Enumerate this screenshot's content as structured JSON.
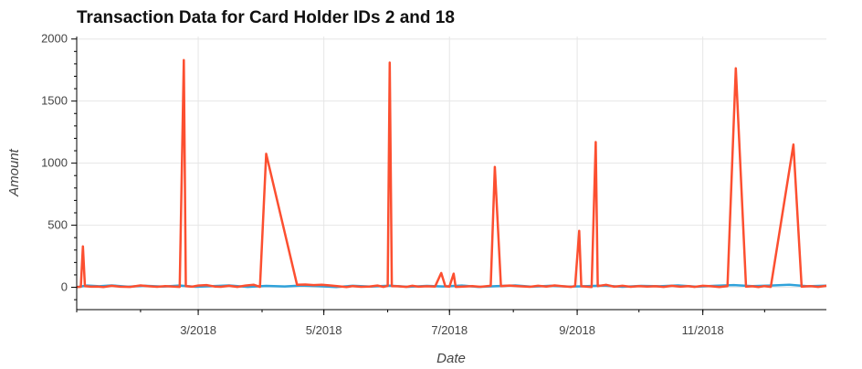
{
  "chart_data": {
    "type": "line",
    "title": "Transaction Data for Card Holder IDs 2 and 18",
    "xlabel": "Date",
    "ylabel": "Amount",
    "xlim": [
      "2018-01-01",
      "2018-12-31"
    ],
    "ylim": [
      -180,
      2020
    ],
    "x_ticks": [
      "3/2018",
      "5/2018",
      "7/2018",
      "9/2018",
      "11/2018"
    ],
    "x_tick_dates": [
      "2018-03-01",
      "2018-05-01",
      "2018-07-01",
      "2018-09-01",
      "2018-11-01"
    ],
    "y_ticks": [
      0,
      500,
      1000,
      1500,
      2000
    ],
    "grid": true,
    "legend": "none",
    "colors": {
      "card_holder_2": "#30a2da",
      "card_holder_18": "#fc4f30",
      "grid": "#e6e6e6"
    },
    "series": [
      {
        "values": [
          {
            "x": "2018-01-01",
            "y": 2
          },
          {
            "x": "2018-01-06",
            "y": 14
          },
          {
            "x": "2018-01-12",
            "y": 8
          },
          {
            "x": "2018-01-18",
            "y": 15
          },
          {
            "x": "2018-01-26",
            "y": 5
          },
          {
            "x": "2018-02-03",
            "y": 12
          },
          {
            "x": "2018-02-12",
            "y": 6
          },
          {
            "x": "2018-02-20",
            "y": 14
          },
          {
            "x": "2018-02-28",
            "y": 4
          },
          {
            "x": "2018-03-08",
            "y": 10
          },
          {
            "x": "2018-03-16",
            "y": 15
          },
          {
            "x": "2018-03-25",
            "y": 3
          },
          {
            "x": "2018-04-03",
            "y": 11
          },
          {
            "x": "2018-04-12",
            "y": 7
          },
          {
            "x": "2018-04-20",
            "y": 14
          },
          {
            "x": "2018-04-28",
            "y": 9
          },
          {
            "x": "2018-05-07",
            "y": 2
          },
          {
            "x": "2018-05-15",
            "y": 12
          },
          {
            "x": "2018-05-24",
            "y": 6
          },
          {
            "x": "2018-06-02",
            "y": 13
          },
          {
            "x": "2018-06-11",
            "y": 4
          },
          {
            "x": "2018-06-20",
            "y": 11
          },
          {
            "x": "2018-06-28",
            "y": 7
          },
          {
            "x": "2018-07-07",
            "y": 14
          },
          {
            "x": "2018-07-15",
            "y": 3
          },
          {
            "x": "2018-07-24",
            "y": 10
          },
          {
            "x": "2018-08-02",
            "y": 15
          },
          {
            "x": "2018-08-10",
            "y": 5
          },
          {
            "x": "2018-08-19",
            "y": 12
          },
          {
            "x": "2018-08-28",
            "y": 6
          },
          {
            "x": "2018-09-06",
            "y": 9
          },
          {
            "x": "2018-09-14",
            "y": 14
          },
          {
            "x": "2018-09-23",
            "y": 4
          },
          {
            "x": "2018-10-02",
            "y": 11
          },
          {
            "x": "2018-10-11",
            "y": 8
          },
          {
            "x": "2018-10-20",
            "y": 15
          },
          {
            "x": "2018-10-29",
            "y": 5
          },
          {
            "x": "2018-11-07",
            "y": 12
          },
          {
            "x": "2018-11-16",
            "y": 18
          },
          {
            "x": "2018-11-25",
            "y": 10
          },
          {
            "x": "2018-12-04",
            "y": 14
          },
          {
            "x": "2018-12-13",
            "y": 20
          },
          {
            "x": "2018-12-22",
            "y": 8
          },
          {
            "x": "2018-12-31",
            "y": 13
          }
        ]
      },
      {
        "values": [
          {
            "x": "2018-01-01",
            "y": 2
          },
          {
            "x": "2018-01-03",
            "y": 4
          },
          {
            "x": "2018-01-04",
            "y": 330
          },
          {
            "x": "2018-01-05",
            "y": 10
          },
          {
            "x": "2018-01-08",
            "y": 5
          },
          {
            "x": "2018-01-11",
            "y": 6
          },
          {
            "x": "2018-01-14",
            "y": 2
          },
          {
            "x": "2018-01-18",
            "y": 12
          },
          {
            "x": "2018-01-22",
            "y": 5
          },
          {
            "x": "2018-01-27",
            "y": 3
          },
          {
            "x": "2018-02-01",
            "y": 15
          },
          {
            "x": "2018-02-05",
            "y": 8
          },
          {
            "x": "2018-02-09",
            "y": 4
          },
          {
            "x": "2018-02-13",
            "y": 10
          },
          {
            "x": "2018-02-17",
            "y": 6
          },
          {
            "x": "2018-02-20",
            "y": 3
          },
          {
            "x": "2018-02-22",
            "y": 1830
          },
          {
            "x": "2018-02-23",
            "y": 10
          },
          {
            "x": "2018-02-26",
            "y": 5
          },
          {
            "x": "2018-03-01",
            "y": 14
          },
          {
            "x": "2018-03-05",
            "y": 18
          },
          {
            "x": "2018-03-09",
            "y": 6
          },
          {
            "x": "2018-03-12",
            "y": 4
          },
          {
            "x": "2018-03-16",
            "y": 12
          },
          {
            "x": "2018-03-20",
            "y": 3
          },
          {
            "x": "2018-03-24",
            "y": 14
          },
          {
            "x": "2018-03-28",
            "y": 20
          },
          {
            "x": "2018-03-31",
            "y": 3
          },
          {
            "x": "2018-04-03",
            "y": 1075
          },
          {
            "x": "2018-04-18",
            "y": 20
          },
          {
            "x": "2018-04-22",
            "y": 22
          },
          {
            "x": "2018-04-26",
            "y": 18
          },
          {
            "x": "2018-04-30",
            "y": 20
          },
          {
            "x": "2018-05-04",
            "y": 15
          },
          {
            "x": "2018-05-08",
            "y": 8
          },
          {
            "x": "2018-05-12",
            "y": 2
          },
          {
            "x": "2018-05-15",
            "y": 10
          },
          {
            "x": "2018-05-19",
            "y": 4
          },
          {
            "x": "2018-05-23",
            "y": 6
          },
          {
            "x": "2018-05-27",
            "y": 14
          },
          {
            "x": "2018-05-30",
            "y": 3
          },
          {
            "x": "2018-06-01",
            "y": 12
          },
          {
            "x": "2018-06-02",
            "y": 1810
          },
          {
            "x": "2018-06-03",
            "y": 10
          },
          {
            "x": "2018-06-06",
            "y": 8
          },
          {
            "x": "2018-06-10",
            "y": 3
          },
          {
            "x": "2018-06-13",
            "y": 12
          },
          {
            "x": "2018-06-16",
            "y": 5
          },
          {
            "x": "2018-06-20",
            "y": 8
          },
          {
            "x": "2018-06-24",
            "y": 6
          },
          {
            "x": "2018-06-27",
            "y": 115
          },
          {
            "x": "2018-06-29",
            "y": 8
          },
          {
            "x": "2018-07-01",
            "y": 5
          },
          {
            "x": "2018-07-03",
            "y": 110
          },
          {
            "x": "2018-07-04",
            "y": 3
          },
          {
            "x": "2018-07-08",
            "y": 6
          },
          {
            "x": "2018-07-12",
            "y": 10
          },
          {
            "x": "2018-07-16",
            "y": 4
          },
          {
            "x": "2018-07-21",
            "y": 12
          },
          {
            "x": "2018-07-23",
            "y": 970
          },
          {
            "x": "2018-07-26",
            "y": 10
          },
          {
            "x": "2018-07-30",
            "y": 14
          },
          {
            "x": "2018-08-04",
            "y": 8
          },
          {
            "x": "2018-08-09",
            "y": 4
          },
          {
            "x": "2018-08-13",
            "y": 12
          },
          {
            "x": "2018-08-17",
            "y": 6
          },
          {
            "x": "2018-08-21",
            "y": 15
          },
          {
            "x": "2018-08-25",
            "y": 8
          },
          {
            "x": "2018-08-29",
            "y": 3
          },
          {
            "x": "2018-08-31",
            "y": 10
          },
          {
            "x": "2018-09-02",
            "y": 455
          },
          {
            "x": "2018-09-03",
            "y": 8
          },
          {
            "x": "2018-09-08",
            "y": 2
          },
          {
            "x": "2018-09-10",
            "y": 1170
          },
          {
            "x": "2018-09-11",
            "y": 10
          },
          {
            "x": "2018-09-15",
            "y": 20
          },
          {
            "x": "2018-09-19",
            "y": 5
          },
          {
            "x": "2018-09-23",
            "y": 12
          },
          {
            "x": "2018-09-27",
            "y": 4
          },
          {
            "x": "2018-10-01",
            "y": 10
          },
          {
            "x": "2018-10-05",
            "y": 6
          },
          {
            "x": "2018-10-09",
            "y": 8
          },
          {
            "x": "2018-10-13",
            "y": 3
          },
          {
            "x": "2018-10-17",
            "y": 12
          },
          {
            "x": "2018-10-21",
            "y": 5
          },
          {
            "x": "2018-10-25",
            "y": 10
          },
          {
            "x": "2018-10-28",
            "y": 3
          },
          {
            "x": "2018-11-01",
            "y": 12
          },
          {
            "x": "2018-11-05",
            "y": 8
          },
          {
            "x": "2018-11-09",
            "y": 2
          },
          {
            "x": "2018-11-13",
            "y": 10
          },
          {
            "x": "2018-11-17",
            "y": 1765
          },
          {
            "x": "2018-11-22",
            "y": 5
          },
          {
            "x": "2018-11-25",
            "y": 8
          },
          {
            "x": "2018-11-28",
            "y": 2
          },
          {
            "x": "2018-12-01",
            "y": 10
          },
          {
            "x": "2018-12-04",
            "y": 3
          },
          {
            "x": "2018-12-15",
            "y": 1150
          },
          {
            "x": "2018-12-19",
            "y": 5
          },
          {
            "x": "2018-12-23",
            "y": 10
          },
          {
            "x": "2018-12-27",
            "y": 3
          },
          {
            "x": "2018-12-31",
            "y": 12
          }
        ]
      }
    ]
  }
}
